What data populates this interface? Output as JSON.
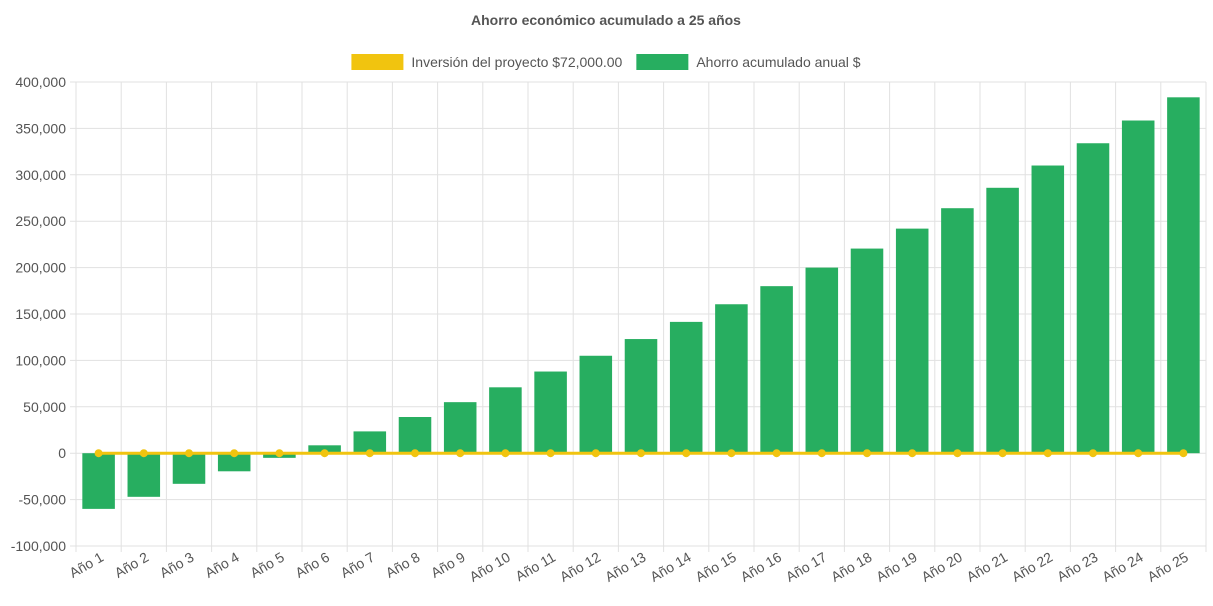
{
  "chart_data": {
    "type": "bar",
    "title": "Ahorro económico acumulado a 25 años",
    "categories": [
      "Año 1",
      "Año 2",
      "Año 3",
      "Año 4",
      "Año 5",
      "Año 6",
      "Año 7",
      "Año 8",
      "Año 9",
      "Año 10",
      "Año 11",
      "Año 12",
      "Año 13",
      "Año 14",
      "Año 15",
      "Año 16",
      "Año 17",
      "Año 18",
      "Año 19",
      "Año 20",
      "Año 21",
      "Año 22",
      "Año 23",
      "Año 24",
      "Año 25"
    ],
    "series": [
      {
        "name": "Inversión del proyecto $72,000.00",
        "kind": "line",
        "color": "#f1c40f",
        "values": [
          0,
          0,
          0,
          0,
          0,
          0,
          0,
          0,
          0,
          0,
          0,
          0,
          0,
          0,
          0,
          0,
          0,
          0,
          0,
          0,
          0,
          0,
          0,
          0,
          0
        ]
      },
      {
        "name": "Ahorro acumulado anual $",
        "kind": "bar",
        "color": "#27ae60",
        "values": [
          -60000,
          -47000,
          -33000,
          -19500,
          -5000,
          8500,
          23500,
          39000,
          55000,
          71000,
          88000,
          105000,
          123000,
          141500,
          160500,
          180000,
          200000,
          220500,
          242000,
          264000,
          286000,
          310000,
          334000,
          358500,
          383500
        ]
      }
    ],
    "ylim": [
      -100000,
      400000
    ],
    "yticks": [
      -100000,
      -50000,
      0,
      50000,
      100000,
      150000,
      200000,
      250000,
      300000,
      350000,
      400000
    ],
    "ytick_labels": [
      "-100,000",
      "-50,000",
      "0",
      "50,000",
      "100,000",
      "150,000",
      "200,000",
      "250,000",
      "300,000",
      "350,000",
      "400,000"
    ],
    "grid": true,
    "legend_position": "top"
  }
}
